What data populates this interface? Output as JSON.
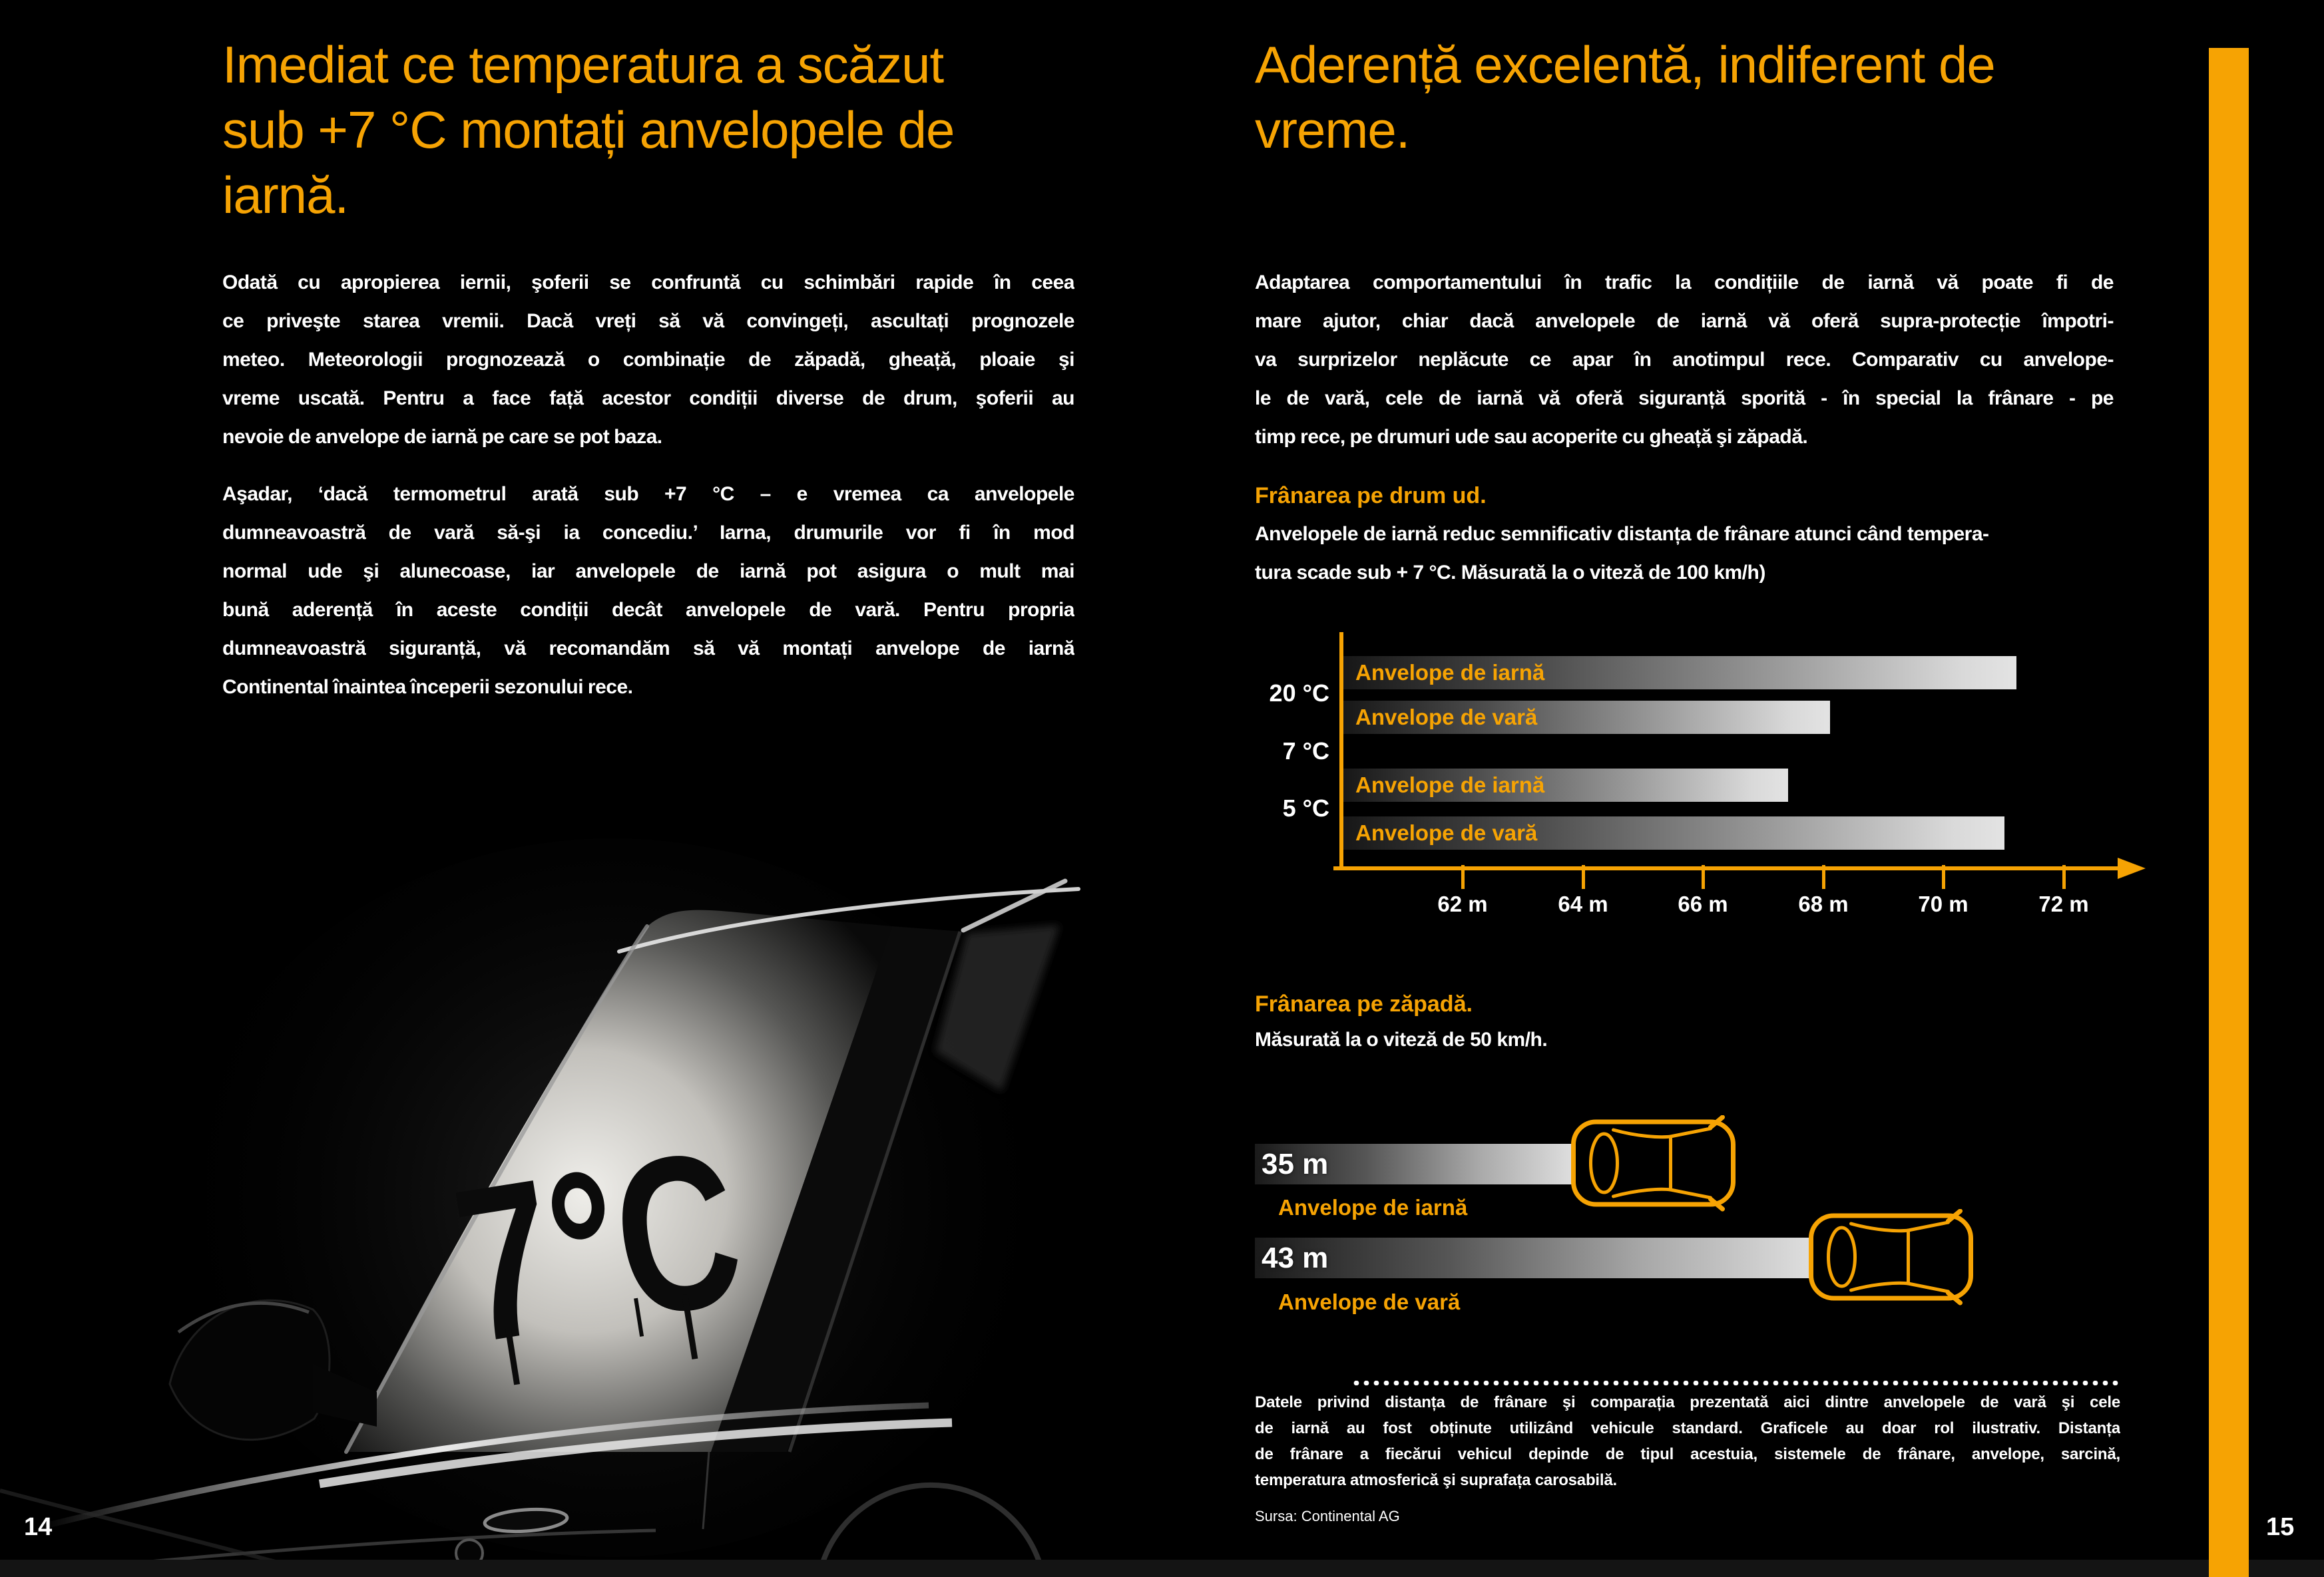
{
  "accent_color": "#F6A303",
  "left_page": {
    "page_number": "14",
    "heading_lines": [
      "Imediat ce temperatura a scăzut",
      "sub +7 °C montați anvelopele de",
      "iarnă."
    ],
    "para1_lines": [
      "Odată cu apropierea iernii, şoferii se confruntă cu schimbări rapide în ceea",
      "ce priveşte starea vremii. Dacă vreți să vă convingeți, ascultați prognozele",
      "meteo. Meteorologii prognozează o combinație de zăpadă, gheață, ploaie şi",
      "vreme uscată. Pentru a face față acestor condiții diverse de drum, şoferii au",
      "nevoie de anvelope de iarnă pe care se pot baza."
    ],
    "para2_lines": [
      "Aşadar, ‘dacă termometrul arată sub +7 °C – e vremea ca anvelopele",
      "dumneavoastră de vară să-şi ia concediu.’ Iarna, drumurile vor fi în mod",
      "normal ude şi alunecoase, iar anvelopele de iarnă pot asigura o mult mai",
      "bună aderență în aceste condiții decât anvelopele de vară. Pentru propria",
      "dumneavoastră siguranță, vă recomandăm să vă montați anvelope de iarnă",
      "Continental înaintea începerii sezonului rece."
    ],
    "photo_overlay_text": "7°C"
  },
  "right_page": {
    "page_number": "15",
    "heading_lines": [
      "Aderență excelentă, indiferent de",
      "vreme."
    ],
    "intro_lines": [
      "Adaptarea comportamentului în trafic la condițiile de iarnă vă poate fi de",
      "mare ajutor, chiar dacă anvelopele de iarnă vă oferă supra-protecție împotri-",
      "va surprizelor neplăcute ce apar în anotimpul rece. Comparativ cu anvelope-",
      "le de vară, cele de iarnă vă oferă siguranță sporită - în special la frânare - pe",
      "timp rece, pe drumuri ude sau acoperite cu gheață şi zăpadă."
    ],
    "wet_desc_lines": [
      "Anvelopele de iarnă reduc semnificativ distanța de frânare atunci când tempera-",
      "tura scade sub + 7 °C. Măsurată la o viteză de 100 km/h)"
    ],
    "disclaimer_lines": [
      "Datele privind distanța de frânare şi comparația prezentată aici dintre anvelopele de vară şi cele",
      "de iarnă au fost obținute utilizând vehicule standard. Graficele au doar rol ilustrativ. Distanța",
      "de frânare a fiecărui vehicul depinde de tipul acestuia, sistemele de frânare, anvelope, sarcină,",
      "temperatura atmosferică şi suprafața carosabilă."
    ],
    "source": "Sursa: Continental AG"
  },
  "chart_data": [
    {
      "type": "bar",
      "orientation": "horizontal",
      "title": "Frânarea pe drum ud.",
      "subtitle": "Măsurată la o viteză de 100 km/h)",
      "unit": "m",
      "xlim": [
        60,
        72
      ],
      "x_ticks": [
        "62 m",
        "64 m",
        "66 m",
        "68 m",
        "70 m",
        "72 m"
      ],
      "threshold_label": "7 °C",
      "grid": false,
      "groups": [
        {
          "label": "20 °C",
          "bars": [
            {
              "name": "Anvelope de iarnă",
              "value": 71.2
            },
            {
              "name": "Anvelope de vară",
              "value": 68.1
            }
          ]
        },
        {
          "label": "5 °C",
          "bars": [
            {
              "name": "Anvelope de iarnă",
              "value": 67.4
            },
            {
              "name": "Anvelope de vară",
              "value": 71.0
            }
          ]
        }
      ]
    },
    {
      "type": "bar",
      "orientation": "horizontal",
      "title": "Frânarea pe zăpadă.",
      "subtitle": "Măsurată la o viteză de 50 km/h.",
      "unit": "m",
      "bars": [
        {
          "name": "Anvelope de iarnă",
          "value": 35,
          "value_label": "35 m"
        },
        {
          "name": "Anvelope de vară",
          "value": 43,
          "value_label": "43 m"
        }
      ]
    }
  ]
}
